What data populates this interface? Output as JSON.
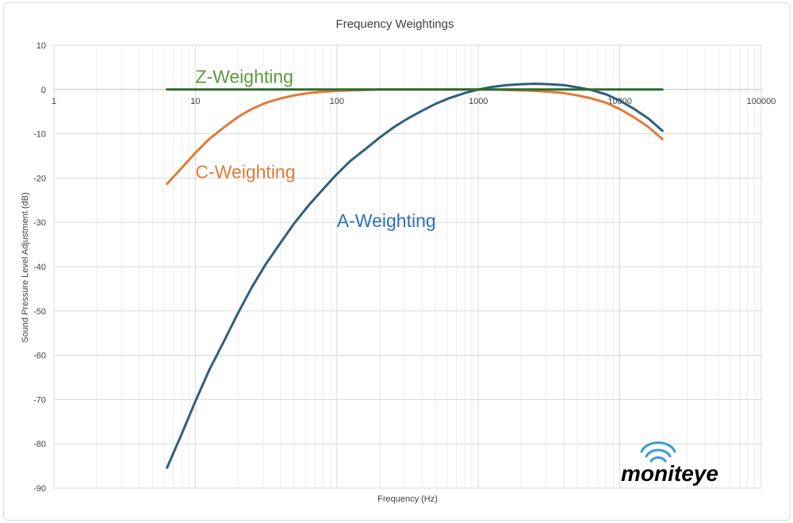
{
  "chart_data": {
    "type": "line",
    "title": "Frequency Weightings",
    "xlabel": "Frequency (Hz)",
    "ylabel": "Sound Pressure Level Adjustment (dB)",
    "xscale": "log",
    "xlim": [
      1,
      100000
    ],
    "ylim": [
      -90,
      10
    ],
    "x_ticks": [
      1,
      10,
      100,
      1000,
      10000,
      100000
    ],
    "x_tick_labels": [
      "1",
      "10",
      "100",
      "1000",
      "10000",
      "100000"
    ],
    "y_ticks": [
      10,
      0,
      -10,
      -20,
      -30,
      -40,
      -50,
      -60,
      -70,
      -80,
      -90
    ],
    "y_tick_labels": [
      "10",
      "0",
      "-10",
      "-20",
      "-30",
      "-40",
      "-50",
      "-60",
      "-70",
      "-80",
      "-90"
    ],
    "grid": true,
    "series": [
      {
        "name": "Z-Weighting",
        "label": "Z-Weighting",
        "color": "#2e6b2e",
        "label_color": "#5b9b3c",
        "label_at": [
          10,
          1.5
        ],
        "x": [
          6.3,
          20000
        ],
        "y": [
          0,
          0
        ]
      },
      {
        "name": "C-Weighting",
        "label": "C-Weighting",
        "color": "#e07b39",
        "label_color": "#e07b39",
        "label_at": [
          10,
          -20
        ],
        "x": [
          6.3,
          8,
          10,
          12.5,
          16,
          20,
          25,
          31.5,
          40,
          50,
          63,
          80,
          100,
          125,
          160,
          200,
          250,
          315,
          400,
          500,
          630,
          800,
          1000,
          1250,
          1600,
          2000,
          2500,
          3150,
          4000,
          5000,
          6300,
          8000,
          10000,
          12500,
          16000,
          20000
        ],
        "y": [
          -21.3,
          -17.7,
          -14.3,
          -11.2,
          -8.5,
          -6.2,
          -4.4,
          -3.0,
          -2.0,
          -1.3,
          -0.8,
          -0.5,
          -0.3,
          -0.2,
          -0.1,
          0,
          0,
          0,
          0,
          0,
          0,
          0,
          0,
          0,
          -0.1,
          -0.2,
          -0.3,
          -0.5,
          -0.8,
          -1.3,
          -2.0,
          -3.0,
          -4.4,
          -6.2,
          -8.5,
          -11.2
        ]
      },
      {
        "name": "A-Weighting",
        "label": "A-Weighting",
        "color": "#2f5f7f",
        "label_color": "#2e6fb5",
        "label_at": [
          100,
          -31
        ],
        "x": [
          6.3,
          8,
          10,
          12.5,
          16,
          20,
          25,
          31.5,
          40,
          50,
          63,
          80,
          100,
          125,
          160,
          200,
          250,
          315,
          400,
          500,
          630,
          800,
          1000,
          1250,
          1600,
          2000,
          2500,
          3150,
          4000,
          5000,
          6300,
          8000,
          10000,
          12500,
          16000,
          20000
        ],
        "y": [
          -85.4,
          -77.8,
          -70.4,
          -63.4,
          -56.7,
          -50.5,
          -44.7,
          -39.4,
          -34.6,
          -30.2,
          -26.2,
          -22.5,
          -19.1,
          -16.1,
          -13.4,
          -10.9,
          -8.6,
          -6.6,
          -4.8,
          -3.2,
          -1.9,
          -0.8,
          0,
          0.6,
          1.0,
          1.2,
          1.3,
          1.2,
          1.0,
          0.5,
          -0.1,
          -1.1,
          -2.5,
          -4.3,
          -6.6,
          -9.3
        ]
      }
    ]
  },
  "logo": {
    "text": "moniteye",
    "color": "#3a9ad9"
  }
}
